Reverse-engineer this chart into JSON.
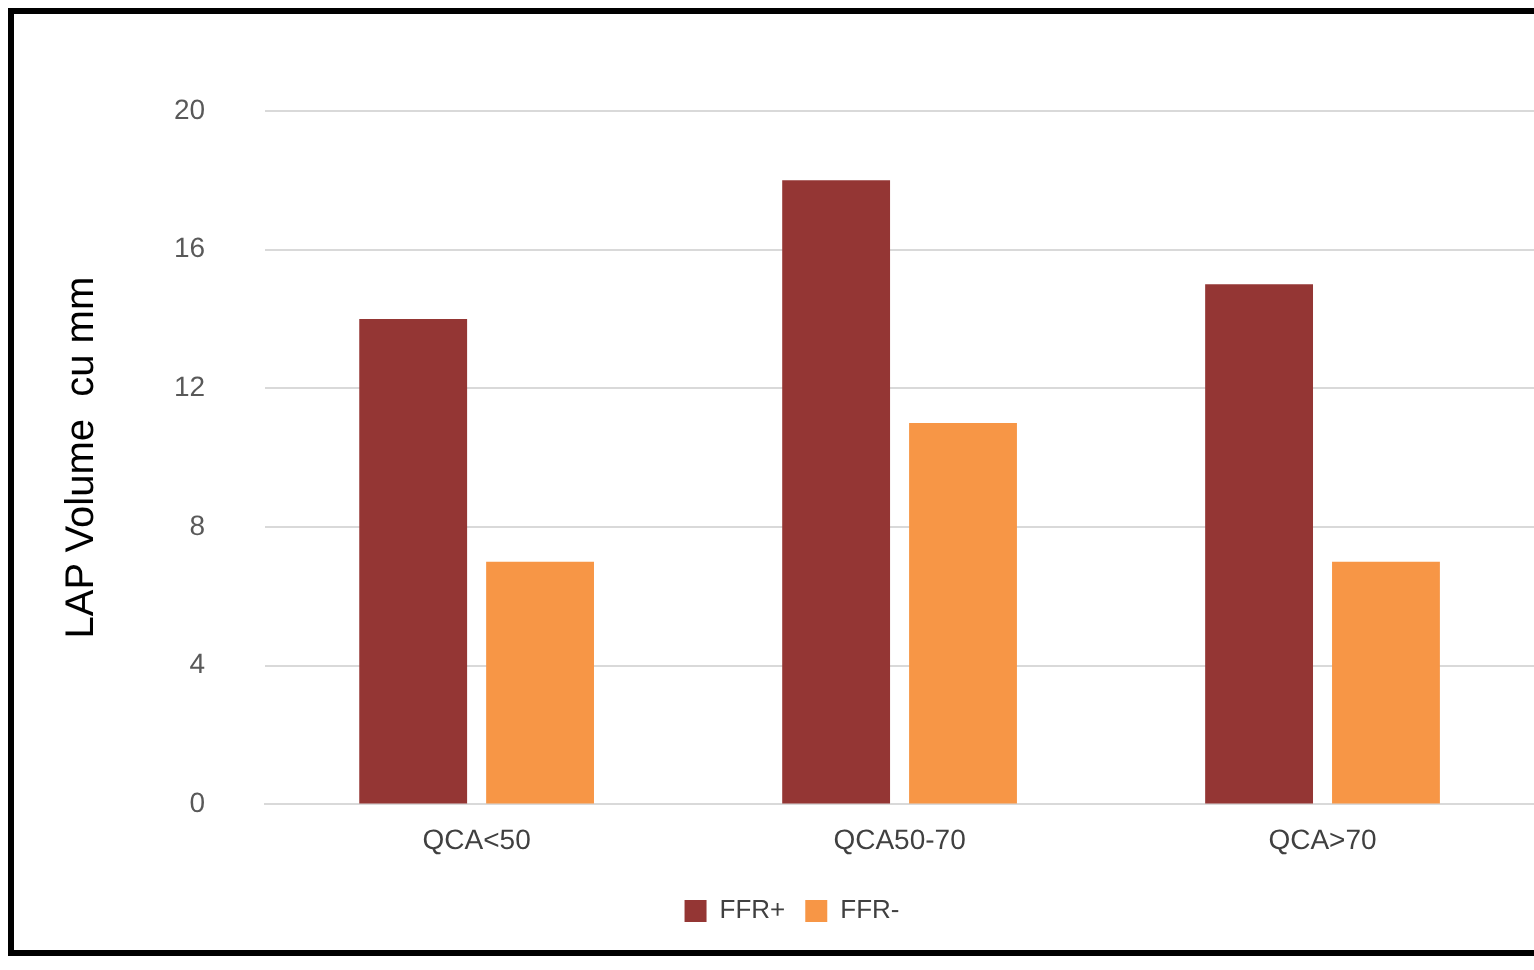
{
  "chart_data": {
    "type": "bar",
    "ylabel": "LAP Volume  cu mm",
    "categories": [
      "QCA<50",
      "QCA50-70",
      "QCA>70"
    ],
    "series": [
      {
        "name": "FFR+",
        "color": "#943634",
        "values": [
          14,
          18,
          15
        ]
      },
      {
        "name": "FFR-",
        "color": "#f79646",
        "values": [
          7,
          11,
          7
        ]
      }
    ],
    "ylim": [
      0,
      20
    ],
    "yticks": [
      0,
      4,
      8,
      12,
      16,
      20
    ],
    "grid": "y",
    "legend": "bottom"
  }
}
